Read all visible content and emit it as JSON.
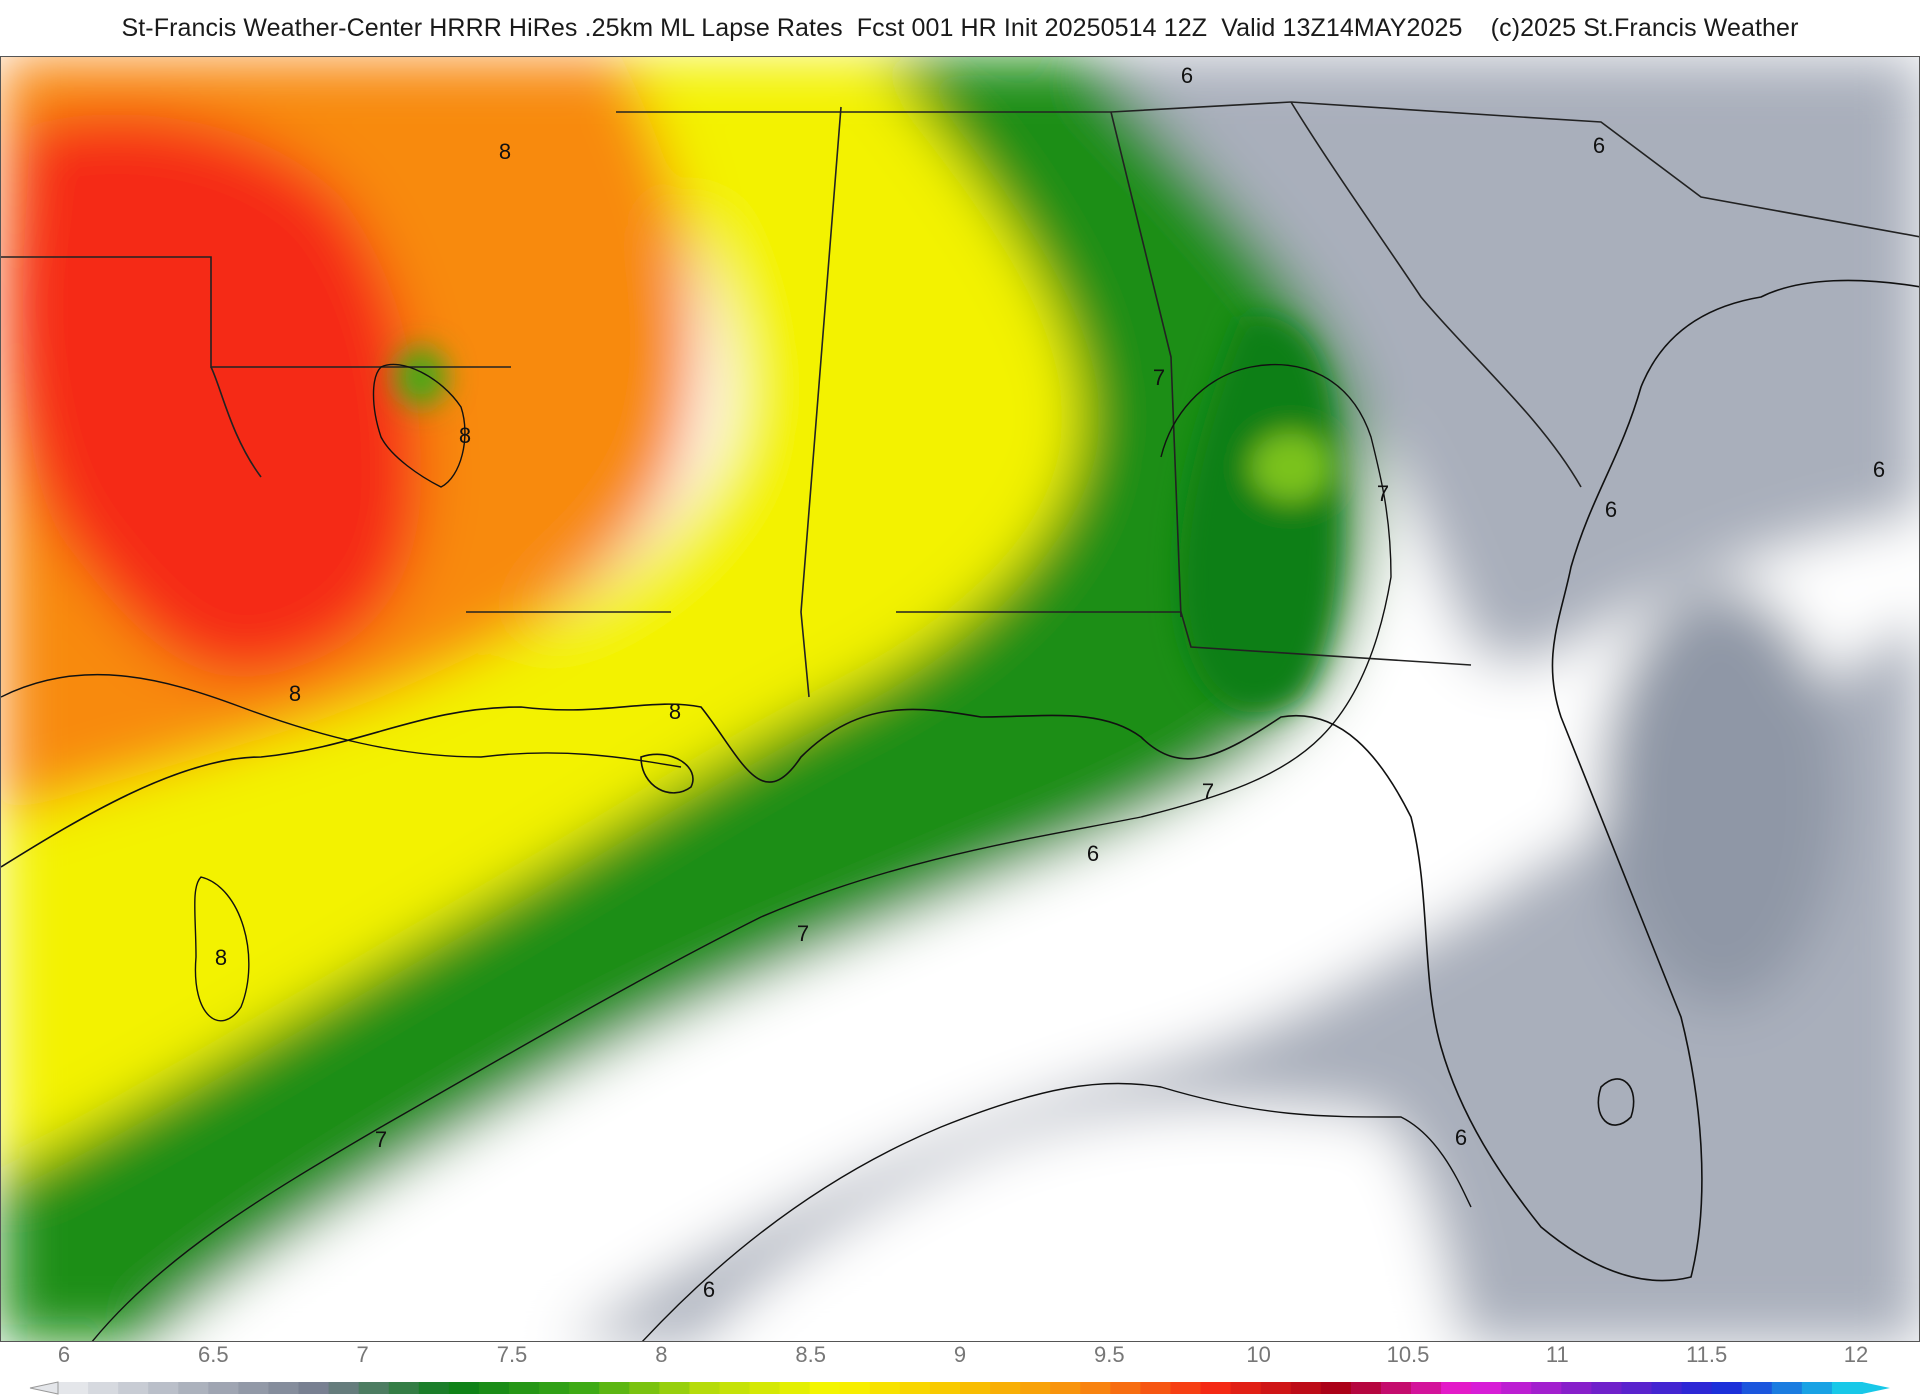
{
  "header": {
    "title": "St-Francis Weather-Center HRRR HiRes .25km ML Lapse Rates  Fcst 001 HR Init 20250514 12Z  Valid 13Z14MAY2025    (c)2025 St.Francis Weather"
  },
  "map": {
    "contour_labels": [
      {
        "text": "6"
      },
      {
        "text": "6"
      },
      {
        "text": "6"
      },
      {
        "text": "6"
      },
      {
        "text": "6"
      },
      {
        "text": "6"
      },
      {
        "text": "6"
      },
      {
        "text": "7"
      },
      {
        "text": "7"
      },
      {
        "text": "7"
      },
      {
        "text": "7"
      },
      {
        "text": "7"
      },
      {
        "text": "8"
      },
      {
        "text": "8"
      },
      {
        "text": "8"
      },
      {
        "text": "8"
      },
      {
        "text": "8"
      }
    ]
  },
  "colorbar": {
    "ticks": [
      "6",
      "6.5",
      "7",
      "7.5",
      "8",
      "8.5",
      "9",
      "9.5",
      "10",
      "10.5",
      "11",
      "11.5",
      "12"
    ],
    "range": [
      6,
      12
    ],
    "colors": {
      "gray_light": "#e4e6ea",
      "gray_mid": "#a9afbb",
      "gray_dark": "#737b8c",
      "green_dark": "#0b7f18",
      "green_mid": "#3aa815",
      "lime": "#b7dc0a",
      "yellow": "#f7f700",
      "gold": "#f8c400",
      "orange": "#f88a10",
      "red": "#f52a14",
      "darkred": "#a80018",
      "magenta": "#e81cd8",
      "purple": "#7820c8",
      "blue": "#1c28d8",
      "cyan": "#18c8e8"
    }
  }
}
